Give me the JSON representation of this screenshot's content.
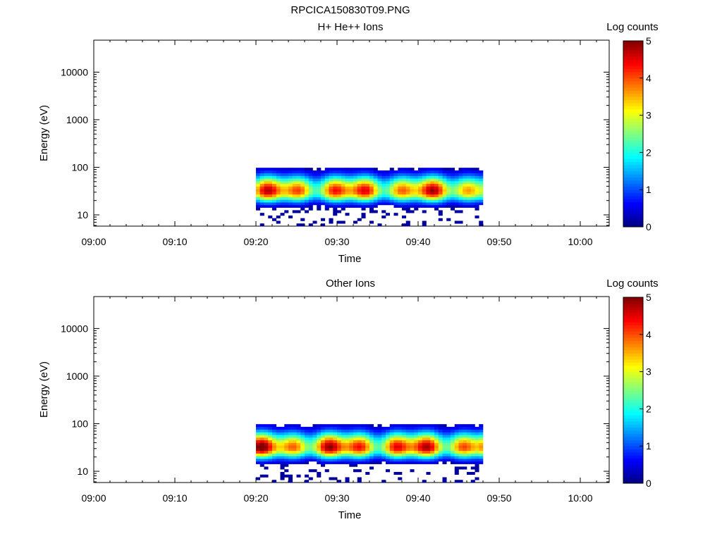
{
  "figure_title": "RPCICA150830T09.PNG",
  "chart_data": [
    {
      "type": "heatmap",
      "title": "H+ He++ Ions",
      "xlabel": "Time",
      "ylabel": "Energy (eV)",
      "y_scale": "log",
      "ylim": [
        5.8,
        47000
      ],
      "x_ticks": [
        "09:00",
        "09:10",
        "09:20",
        "09:30",
        "09:40",
        "09:50",
        "10:00"
      ],
      "y_ticks": [
        "10",
        "100",
        "1000",
        "10000"
      ],
      "colorbar": {
        "label": "Log counts",
        "range": [
          0,
          5
        ],
        "ticks": [
          "0",
          "1",
          "2",
          "3",
          "4",
          "5"
        ]
      },
      "signal": {
        "start": "09:20",
        "end": "09:48",
        "peak_energy_eV": 32,
        "max_energy_eV": 96,
        "strength": 1.0
      }
    },
    {
      "type": "heatmap",
      "title": "Other Ions",
      "xlabel": "Time",
      "ylabel": "Energy (eV)",
      "y_scale": "log",
      "ylim": [
        5.8,
        47000
      ],
      "x_ticks": [
        "09:00",
        "09:10",
        "09:20",
        "09:30",
        "09:40",
        "09:50",
        "10:00"
      ],
      "y_ticks": [
        "10",
        "100",
        "1000",
        "10000"
      ],
      "colorbar": {
        "label": "Log counts",
        "range": [
          0,
          5
        ],
        "ticks": [
          "0",
          "1",
          "2",
          "3",
          "4",
          "5"
        ]
      },
      "signal": {
        "start": "09:20",
        "end": "09:48",
        "peak_energy_eV": 32,
        "max_energy_eV": 96,
        "strength": 1.05
      }
    }
  ]
}
